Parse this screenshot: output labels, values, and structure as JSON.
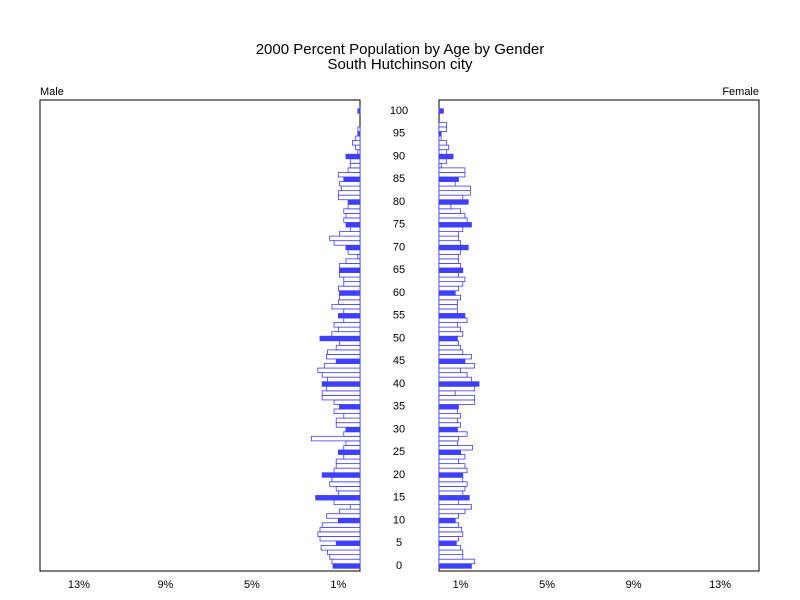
{
  "chart_data": {
    "type": "pyramid",
    "title": "2000 Percent Population by Age by Gender",
    "subtitle": "South Hutchinson city",
    "categories": [
      0,
      null,
      null,
      null,
      null,
      5,
      null,
      null,
      null,
      null,
      10,
      null,
      null,
      null,
      null,
      15,
      null,
      null,
      null,
      null,
      20,
      null,
      null,
      null,
      null,
      25,
      null,
      null,
      null,
      null,
      30,
      null,
      null,
      null,
      null,
      35,
      null,
      null,
      null,
      null,
      40,
      null,
      null,
      null,
      null,
      45,
      null,
      null,
      null,
      null,
      50,
      null,
      null,
      null,
      null,
      55,
      null,
      null,
      null,
      null,
      60,
      null,
      null,
      null,
      null,
      65,
      null,
      null,
      null,
      null,
      70,
      null,
      null,
      null,
      null,
      75,
      null,
      null,
      null,
      null,
      80,
      null,
      null,
      null,
      null,
      85,
      null,
      null,
      null,
      null,
      90,
      null,
      null,
      null,
      null,
      95,
      null,
      null,
      null,
      null,
      100
    ],
    "series": [
      {
        "name": "Male",
        "color": "#3f3fff",
        "values": [
          1.25,
          1.3,
          1.4,
          1.5,
          1.8,
          1.1,
          1.85,
          1.95,
          1.85,
          1.75,
          1.0,
          1.55,
          0.95,
          0.45,
          1.2,
          2.05,
          1.0,
          1.1,
          1.4,
          1.3,
          1.75,
          1.2,
          1.1,
          1.1,
          0.75,
          1.0,
          0.75,
          0.65,
          2.25,
          0.75,
          0.65,
          1.1,
          1.1,
          0.75,
          1.2,
          0.95,
          1.2,
          1.75,
          1.75,
          1.55,
          1.75,
          1.5,
          1.75,
          1.95,
          1.65,
          1.1,
          1.55,
          1.5,
          1.1,
          0.95,
          1.85,
          1.3,
          1.0,
          1.2,
          0.75,
          1.0,
          0.75,
          1.3,
          1.0,
          0.95,
          0.95,
          1.0,
          0.75,
          0.75,
          0.95,
          0.95,
          0.95,
          0.65,
          0.1,
          0.55,
          0.65,
          1.2,
          1.4,
          0.95,
          0.45,
          0.65,
          0.75,
          0.65,
          0.75,
          0.55,
          0.55,
          1.0,
          1.0,
          0.85,
          0.95,
          0.75,
          1.0,
          0.55,
          0.45,
          0.45,
          0.65,
          0.1,
          0.2,
          0.35,
          0.2,
          0.1,
          0.1,
          0,
          0,
          0,
          0.1
        ]
      },
      {
        "name": "Female",
        "color": "#3f3fff",
        "values": [
          1.5,
          1.65,
          1.1,
          1.1,
          1.0,
          0.8,
          0.9,
          1.1,
          1.05,
          0.9,
          0.75,
          0.9,
          1.2,
          1.5,
          0.9,
          1.4,
          1.1,
          1.2,
          1.3,
          1.1,
          1.1,
          1.3,
          1.2,
          0.9,
          1.2,
          1.0,
          1.55,
          0.85,
          0.9,
          1.3,
          0.85,
          1.0,
          0.85,
          1.0,
          0.85,
          0.9,
          1.65,
          1.65,
          0.75,
          1.65,
          1.85,
          1.5,
          1.3,
          1.0,
          1.65,
          1.2,
          1.5,
          1.1,
          1.0,
          0.9,
          0.85,
          1.1,
          1.0,
          0.85,
          1.3,
          1.2,
          0.85,
          0.85,
          0.85,
          1.0,
          0.75,
          0.9,
          1.1,
          1.2,
          0.9,
          1.1,
          1.0,
          0.9,
          0.9,
          1.0,
          1.35,
          1.0,
          0.9,
          0.9,
          1.1,
          1.5,
          1.3,
          1.2,
          1.0,
          0.55,
          1.35,
          1.1,
          1.45,
          1.45,
          0.75,
          0.9,
          1.2,
          1.2,
          0.1,
          0.35,
          0.65,
          0.35,
          0.45,
          0.35,
          0.1,
          0.1,
          0.35,
          0.35,
          0,
          0,
          0.2
        ]
      }
    ],
    "xlim": [
      0,
      14.8
    ],
    "xticks": [
      {
        "value": 13,
        "label": "13%"
      },
      {
        "value": 9,
        "label": "9%"
      },
      {
        "value": 5,
        "label": "5%"
      },
      {
        "value": 1,
        "label": "1%"
      }
    ]
  }
}
